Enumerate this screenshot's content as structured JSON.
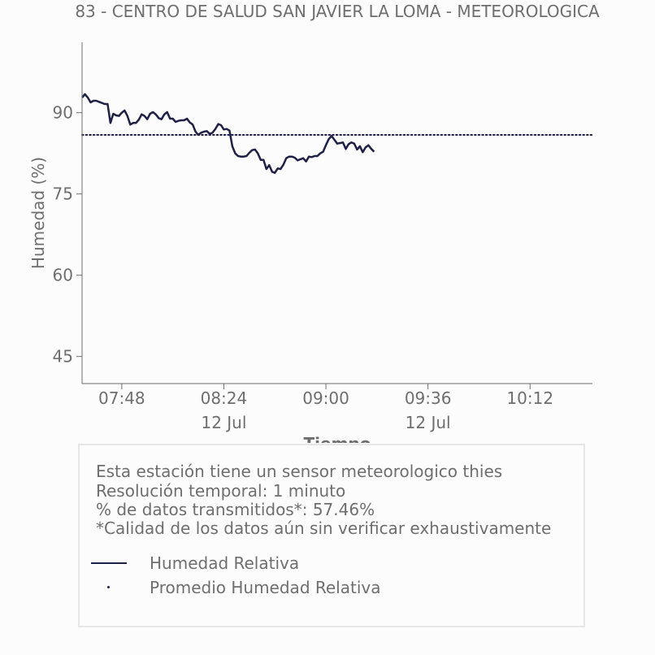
{
  "chart_data": {
    "type": "line",
    "title": "83 - CENTRO DE SALUD SAN JAVIER LA LOMA - METEOROLOGICA",
    "xlabel": "Tiempo",
    "ylabel": "Humedad (%)",
    "xlim": [
      "07:34",
      "10:34"
    ],
    "ylim": [
      40,
      103
    ],
    "x_ticks": [
      {
        "time": "07:48",
        "label": "07:48",
        "sublabel": ""
      },
      {
        "time": "08:24",
        "label": "08:24",
        "sublabel": "12 Jul"
      },
      {
        "time": "09:00",
        "label": "09:00",
        "sublabel": ""
      },
      {
        "time": "09:36",
        "label": "09:36",
        "sublabel": "12 Jul"
      },
      {
        "time": "10:12",
        "label": "10:12",
        "sublabel": ""
      }
    ],
    "y_ticks": [
      45,
      60,
      75,
      90
    ],
    "grid": false,
    "series": [
      {
        "name": "Humedad Relativa",
        "color": "#1f2045",
        "style": "solid",
        "x": [
          "07:34",
          "07:35",
          "07:36",
          "07:37",
          "07:38",
          "07:39",
          "07:40",
          "07:41",
          "07:42",
          "07:43",
          "07:44",
          "07:45",
          "07:46",
          "07:47",
          "07:48",
          "07:49",
          "07:50",
          "07:51",
          "07:52",
          "07:53",
          "07:54",
          "07:55",
          "07:56",
          "07:57",
          "07:58",
          "07:59",
          "08:00",
          "08:01",
          "08:02",
          "08:03",
          "08:04",
          "08:05",
          "08:06",
          "08:07",
          "08:08",
          "08:09",
          "08:10",
          "08:11",
          "08:12",
          "08:13",
          "08:14",
          "08:15",
          "08:16",
          "08:17",
          "08:18",
          "08:19",
          "08:20",
          "08:21",
          "08:22",
          "08:23",
          "08:24",
          "08:25",
          "08:26",
          "08:27",
          "08:28",
          "08:29",
          "08:30",
          "08:31",
          "08:32",
          "08:33",
          "08:34",
          "08:35",
          "08:36",
          "08:37",
          "08:38",
          "08:39",
          "08:40",
          "08:41",
          "08:42",
          "08:43",
          "08:44",
          "08:45",
          "08:46",
          "08:47",
          "08:48",
          "08:49",
          "08:50",
          "08:51",
          "08:52",
          "08:53",
          "08:54",
          "08:55",
          "08:56",
          "08:57",
          "08:58",
          "08:59",
          "09:00",
          "09:01",
          "09:02",
          "09:03",
          "09:04",
          "09:05",
          "09:06",
          "09:07",
          "09:08",
          "09:09",
          "09:10",
          "09:11",
          "09:12",
          "09:13",
          "09:14",
          "09:15",
          "09:16",
          "09:17"
        ],
        "values": [
          92.8,
          93.4,
          92.8,
          91.9,
          92.2,
          92.2,
          92.0,
          91.8,
          91.6,
          91.6,
          88.1,
          89.8,
          89.5,
          89.4,
          90.0,
          90.4,
          89.4,
          87.8,
          88.1,
          88.1,
          88.7,
          89.7,
          89.4,
          88.8,
          89.8,
          90.1,
          89.7,
          89.0,
          88.8,
          89.7,
          90.1,
          88.9,
          88.9,
          88.3,
          88.5,
          88.6,
          88.6,
          88.9,
          88.2,
          87.8,
          86.5,
          85.9,
          86.3,
          86.5,
          86.6,
          86.1,
          86.3,
          87.0,
          87.9,
          87.7,
          86.9,
          87.0,
          86.7,
          83.8,
          82.5,
          82.0,
          81.9,
          81.9,
          82.0,
          82.6,
          83.1,
          83.2,
          82.5,
          81.3,
          81.3,
          79.6,
          80.3,
          79.1,
          78.9,
          79.7,
          79.6,
          80.4,
          81.6,
          81.9,
          81.9,
          81.7,
          81.2,
          81.4,
          81.6,
          81.0,
          81.9,
          81.8,
          82.0,
          82.0,
          82.5,
          82.8,
          84.0,
          85.1,
          85.7,
          85.0,
          84.3,
          84.4,
          84.5,
          83.3,
          84.2,
          84.5,
          84.3,
          83.2,
          83.8,
          82.7,
          83.6,
          84.0,
          83.3,
          82.8
        ]
      },
      {
        "name": "Promedio Humedad Relativa",
        "color": "#1f2045",
        "style": "dotted",
        "constant": 85.9
      }
    ],
    "legend_position": "bottom"
  },
  "info": {
    "line1": "Esta estación tiene un sensor meteorologico thies",
    "line2": "Resolución temporal: 1 minuto",
    "line3": "% de datos transmitidos*: 57.46%",
    "line4": "*Calidad de los datos aún sin verificar exhaustivamente"
  }
}
